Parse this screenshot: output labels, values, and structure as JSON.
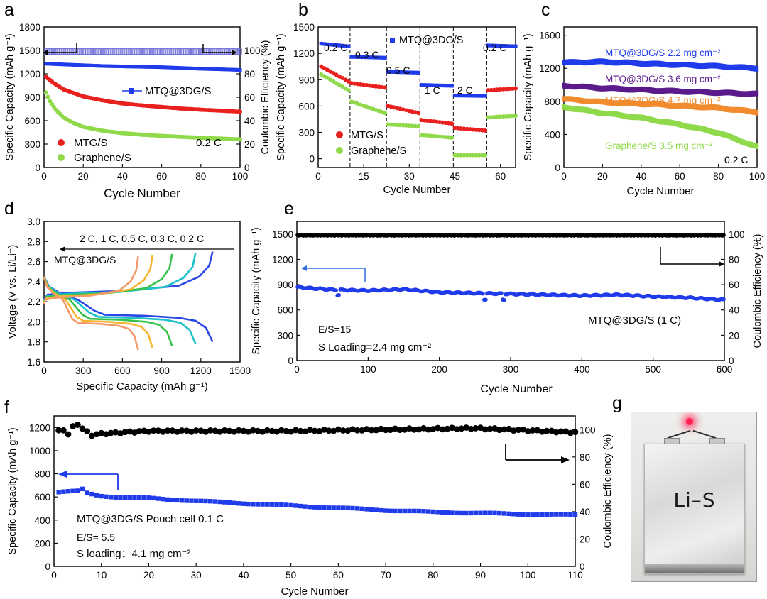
{
  "colors": {
    "blue": "#1f3bea",
    "red": "#e8201e",
    "green": "#8fd94a",
    "black": "#000000",
    "purple": "#5a1a8c",
    "orange": "#f28a2e",
    "arrow_blue": "#2f6fe0"
  },
  "panels": {
    "a": {
      "label": "a",
      "xlabel": "Cycle Number",
      "ylabel": "Specific Capacity (mAh g⁻¹)",
      "y2label": "Coulombic Efficiency (%)",
      "xticks": [
        "0",
        "20",
        "40",
        "60",
        "80",
        "100"
      ],
      "yticks": [
        "0",
        "300",
        "600",
        "900",
        "1200",
        "1500",
        "1800"
      ],
      "y2ticks": [
        "0",
        "20",
        "40",
        "60",
        "80",
        "100"
      ],
      "legend_mtq": "MTQ@3DG/S",
      "legend_mtg": "MTG/S",
      "legend_gr": "Graphene/S",
      "rate": "0.2 C"
    },
    "b": {
      "label": "b",
      "xlabel": "Cycle Number",
      "ylabel": "Specific Capacity (mAh g⁻¹)",
      "xticks": [
        "0",
        "15",
        "30",
        "45",
        "60"
      ],
      "yticks": [
        "0",
        "300",
        "600",
        "900",
        "1200",
        "1500"
      ],
      "legend_mtq": "MTQ@3DG/S",
      "legend_mtg": "MTG/S",
      "legend_gr": "Graphene/S",
      "rates": [
        "0.2 C",
        "0.3 C",
        "0.5 C",
        "1 C",
        "2 C",
        "0.2 C"
      ]
    },
    "c": {
      "label": "c",
      "xlabel": "Cycle Number",
      "ylabel": "Specific Capacity (mAh g⁻¹)",
      "xticks": [
        "0",
        "20",
        "40",
        "60",
        "80",
        "100"
      ],
      "yticks": [
        "0",
        "400",
        "800",
        "1200",
        "1600"
      ],
      "labels": [
        "MTQ@3DG/S  2.2 mg cm⁻²",
        "MTQ@3DG/S  3.6 mg cm⁻²",
        "MTQ@3DG/S  4.7 mg cm⁻²",
        "Graphene/S  3.5 mg cm⁻²"
      ],
      "rate": "0.2 C"
    },
    "d": {
      "label": "d",
      "xlabel": "Specific Capacity (mAh g⁻¹)",
      "ylabel": "Voltage (V vs. Li/Li⁺)",
      "xticks": [
        "0",
        "300",
        "600",
        "900",
        "1200",
        "1500"
      ],
      "yticks": [
        "1.6",
        "1.8",
        "2.0",
        "2.2",
        "2.4",
        "2.6",
        "2.8",
        "3.0"
      ],
      "rate_header": "2 C,  1 C,  0.5 C,  0.3 C,  0.2 C",
      "sample": "MTQ@3DG/S"
    },
    "e": {
      "label": "e",
      "xlabel": "Cycle Number",
      "ylabel": "Specific Capacity (mAh g⁻¹)",
      "y2label": "Coulombic Efficiency (%)",
      "xticks": [
        "0",
        "100",
        "200",
        "300",
        "400",
        "500",
        "600"
      ],
      "yticks": [
        "0",
        "300",
        "600",
        "900",
        "1200",
        "1500"
      ],
      "y2ticks": [
        "0",
        "20",
        "40",
        "60",
        "80",
        "100"
      ],
      "sample": "MTQ@3DG/S (1 C)",
      "es": "E/S=15",
      "loading": "S Loading=2.4 mg cm⁻²"
    },
    "f": {
      "label": "f",
      "xlabel": "Cycle Number",
      "ylabel": "Specific Capacity (mAh g⁻¹)",
      "y2label": "Coulombic Efficiency (%)",
      "xticks": [
        "0",
        "10",
        "20",
        "30",
        "40",
        "50",
        "60",
        "70",
        "80",
        "90",
        "100",
        "110"
      ],
      "yticks": [
        "0",
        "200",
        "400",
        "600",
        "800",
        "1000",
        "1200"
      ],
      "y2ticks": [
        "0",
        "20",
        "40",
        "60",
        "80",
        "100"
      ],
      "sample": "MTQ@3DG/S Pouch cell 0.1 C",
      "es": "E/S= 5.5",
      "loading": "S loading：4.1 mg cm⁻²"
    },
    "g": {
      "label": "g",
      "pouch_text": "Li–S"
    }
  },
  "chart_data": [
    {
      "panel": "a",
      "type": "scatter",
      "xlim": [
        0,
        100
      ],
      "ylim": [
        0,
        1800
      ],
      "y2lim": [
        0,
        120
      ],
      "series": [
        {
          "name": "MTQ@3DG/S",
          "axis": "left",
          "points": [
            [
              1,
              1330
            ],
            [
              10,
              1320
            ],
            [
              20,
              1310
            ],
            [
              30,
              1300
            ],
            [
              40,
              1295
            ],
            [
              50,
              1290
            ],
            [
              60,
              1285
            ],
            [
              70,
              1275
            ],
            [
              80,
              1265
            ],
            [
              90,
              1258
            ],
            [
              100,
              1250
            ]
          ]
        },
        {
          "name": "MTG/S",
          "axis": "left",
          "points": [
            [
              1,
              1160
            ],
            [
              5,
              1080
            ],
            [
              10,
              1000
            ],
            [
              20,
              910
            ],
            [
              30,
              860
            ],
            [
              40,
              820
            ],
            [
              50,
              795
            ],
            [
              60,
              775
            ],
            [
              70,
              755
            ],
            [
              80,
              740
            ],
            [
              90,
              728
            ],
            [
              100,
              715
            ]
          ]
        },
        {
          "name": "Graphene/S",
          "axis": "left",
          "points": [
            [
              1,
              960
            ],
            [
              3,
              850
            ],
            [
              6,
              740
            ],
            [
              10,
              640
            ],
            [
              15,
              570
            ],
            [
              20,
              520
            ],
            [
              30,
              470
            ],
            [
              40,
              440
            ],
            [
              50,
              420
            ],
            [
              60,
              405
            ],
            [
              70,
              392
            ],
            [
              80,
              380
            ],
            [
              90,
              370
            ],
            [
              100,
              360
            ]
          ]
        },
        {
          "name": "MTQ@3DG/S CE",
          "axis": "right",
          "points": [
            [
              1,
              99
            ],
            [
              50,
              99
            ],
            [
              100,
              99
            ]
          ]
        }
      ]
    },
    {
      "panel": "b",
      "type": "scatter",
      "xlim": [
        0,
        65
      ],
      "ylim": [
        -100,
        1500
      ],
      "series": [
        {
          "name": "MTQ@3DG/S",
          "segments": [
            [
              1,
              10,
              1310,
              1280
            ],
            [
              11,
              22,
              1160,
              1150
            ],
            [
              23,
              33,
              990,
              980
            ],
            [
              34,
              44,
              840,
              830
            ],
            [
              45,
              55,
              720,
              715
            ],
            [
              56,
              65,
              1290,
              1280
            ]
          ]
        },
        {
          "name": "MTG/S",
          "segments": [
            [
              1,
              10,
              1050,
              880
            ],
            [
              11,
              22,
              860,
              810
            ],
            [
              23,
              33,
              600,
              520
            ],
            [
              34,
              44,
              440,
              400
            ],
            [
              45,
              55,
              350,
              320
            ],
            [
              56,
              65,
              780,
              800
            ]
          ]
        },
        {
          "name": "Graphene/S",
          "segments": [
            [
              1,
              10,
              960,
              780
            ],
            [
              11,
              22,
              650,
              520
            ],
            [
              23,
              33,
              390,
              370
            ],
            [
              34,
              44,
              270,
              240
            ],
            [
              45,
              55,
              40,
              40
            ],
            [
              56,
              65,
              470,
              490
            ]
          ]
        }
      ]
    },
    {
      "panel": "c",
      "type": "line",
      "xlim": [
        0,
        100
      ],
      "ylim": [
        0,
        1700
      ],
      "series": [
        {
          "name": "MTQ@3DG/S 2.2 mg cm-2",
          "points": [
            [
              0,
              1270
            ],
            [
              20,
              1280
            ],
            [
              50,
              1250
            ],
            [
              80,
              1225
            ],
            [
              100,
              1200
            ]
          ]
        },
        {
          "name": "MTQ@3DG/S 3.6 mg cm-2",
          "points": [
            [
              0,
              990
            ],
            [
              20,
              960
            ],
            [
              50,
              930
            ],
            [
              80,
              905
            ],
            [
              100,
              890
            ]
          ]
        },
        {
          "name": "MTQ@3DG/S 4.7 mg cm-2",
          "points": [
            [
              0,
              830
            ],
            [
              20,
              790
            ],
            [
              50,
              760
            ],
            [
              80,
              720
            ],
            [
              100,
              670
            ]
          ]
        },
        {
          "name": "Graphene/S 3.5 mg cm-2",
          "points": [
            [
              0,
              730
            ],
            [
              20,
              660
            ],
            [
              40,
              600
            ],
            [
              60,
              520
            ],
            [
              80,
              420
            ],
            [
              100,
              250
            ]
          ]
        }
      ]
    },
    {
      "panel": "d",
      "type": "line",
      "xlim": [
        0,
        1500
      ],
      "ylim": [
        1.6,
        3.0
      ],
      "series": [
        {
          "name": "0.2 C",
          "capacity": 1290
        },
        {
          "name": "0.3 C",
          "capacity": 1160
        },
        {
          "name": "0.5 C",
          "capacity": 980
        },
        {
          "name": "1 C",
          "capacity": 830
        },
        {
          "name": "2 C",
          "capacity": 720
        }
      ]
    },
    {
      "panel": "e",
      "type": "scatter",
      "xlim": [
        0,
        600
      ],
      "ylim": [
        0,
        1650
      ],
      "y2lim": [
        0,
        110
      ],
      "series": [
        {
          "name": "MTQ@3DG/S (1 C) capacity",
          "points": [
            [
              1,
              870
            ],
            [
              50,
              840
            ],
            [
              100,
              830
            ],
            [
              150,
              845
            ],
            [
              200,
              810
            ],
            [
              250,
              800
            ],
            [
              300,
              790
            ],
            [
              350,
              780
            ],
            [
              400,
              770
            ],
            [
              450,
              780
            ],
            [
              500,
              760
            ],
            [
              550,
              745
            ],
            [
              600,
              720
            ]
          ]
        },
        {
          "name": "Coulombic efficiency",
          "points": [
            [
              1,
              99
            ],
            [
              300,
              99
            ],
            [
              600,
              99
            ]
          ]
        }
      ]
    },
    {
      "panel": "f",
      "type": "scatter",
      "xlim": [
        0,
        110
      ],
      "ylim": [
        0,
        1300
      ],
      "y2lim": [
        0,
        110
      ],
      "series": [
        {
          "name": "MTQ@3DG/S Pouch cell 0.1 C",
          "points": [
            [
              1,
              640
            ],
            [
              5,
              650
            ],
            [
              10,
              610
            ],
            [
              14,
              595
            ],
            [
              20,
              590
            ],
            [
              30,
              565
            ],
            [
              40,
              545
            ],
            [
              50,
              525
            ],
            [
              60,
              505
            ],
            [
              70,
              485
            ],
            [
              80,
              470
            ],
            [
              90,
              460
            ],
            [
              100,
              450
            ],
            [
              110,
              445
            ]
          ]
        },
        {
          "name": "Coulombic efficiency",
          "points": [
            [
              1,
              99
            ],
            [
              5,
              103
            ],
            [
              8,
              96
            ],
            [
              10,
              97
            ],
            [
              20,
              99
            ],
            [
              50,
              99
            ],
            [
              89,
              101
            ],
            [
              110,
              98
            ]
          ]
        }
      ]
    }
  ]
}
